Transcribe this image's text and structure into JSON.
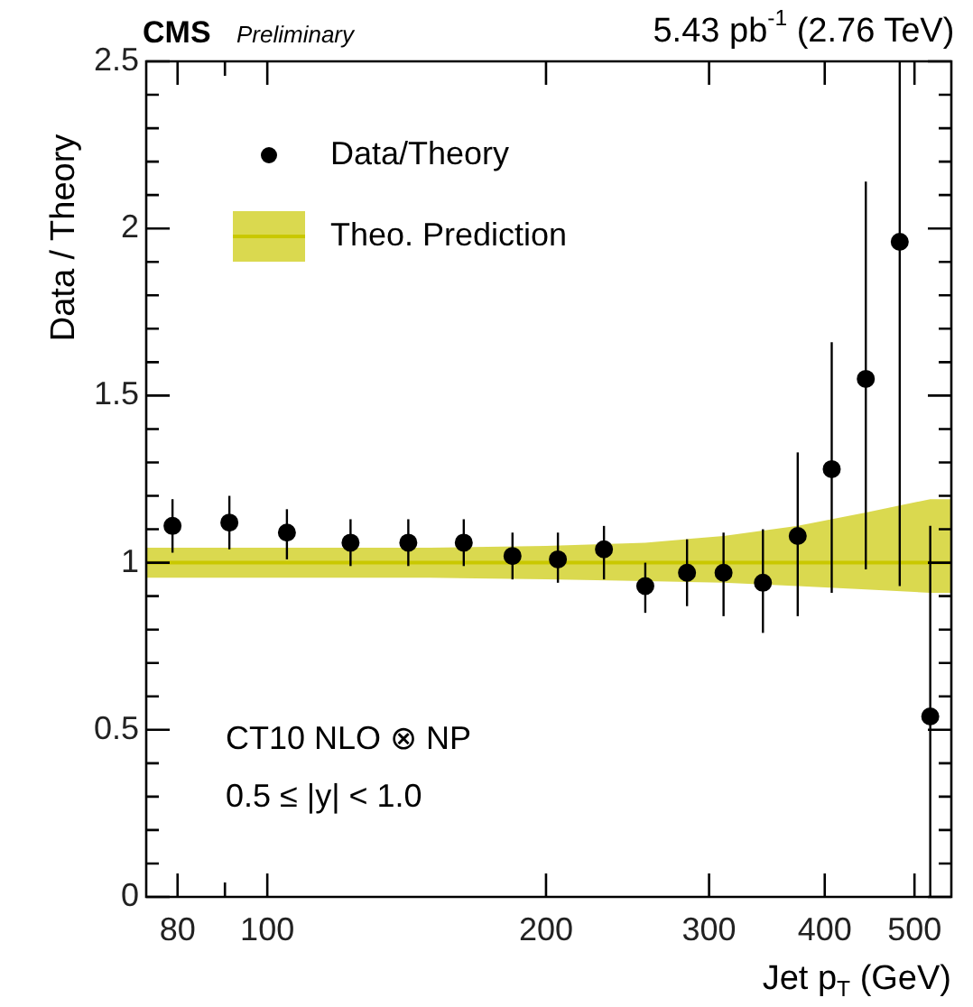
{
  "chart_data": {
    "type": "scatter",
    "xlabel": "Jet p$_{T}$ (GeV)",
    "ylabel": "Data / Theory",
    "annotations": [
      "CMS",
      "Preliminary",
      "5.43 pb$^{-1}$ (2.76 TeV)",
      "CT10 NLO ⊗ NP",
      "0.5 ≤ |y| < 1.0"
    ],
    "log": "x",
    "grid": false,
    "legend": "top left",
    "xlim": [
      74,
      548
    ],
    "xticks": [
      80,
      {
        "value": 90,
        "label": null
      },
      100,
      200,
      300,
      400,
      500
    ],
    "ylim": [
      0,
      2.5
    ],
    "yticks": [
      0,
      {
        "value": 0.1,
        "label": null
      },
      {
        "value": 0.2,
        "label": null
      },
      {
        "value": 0.3,
        "label": null
      },
      {
        "value": 0.4,
        "label": null
      },
      0.5,
      {
        "value": 0.6,
        "label": null
      },
      {
        "value": 0.7,
        "label": null
      },
      {
        "value": 0.8,
        "label": null
      },
      {
        "value": 0.9,
        "label": null
      },
      1,
      {
        "value": 1.1,
        "label": null
      },
      {
        "value": 1.2,
        "label": null
      },
      {
        "value": 1.3,
        "label": null
      },
      {
        "value": 1.4,
        "label": null
      },
      1.5,
      {
        "value": 1.6,
        "label": null
      },
      {
        "value": 1.7,
        "label": null
      },
      {
        "value": 1.8,
        "label": null
      },
      {
        "value": 1.9,
        "label": null
      },
      2,
      {
        "value": 2.1,
        "label": null
      },
      {
        "value": 2.2,
        "label": null
      },
      {
        "value": 2.3,
        "label": null
      },
      {
        "value": 2.4,
        "label": null
      },
      2.5
    ],
    "series": [
      {
        "name": "Theo. Prediction",
        "type": "line",
        "color": "#c9c800",
        "x": [
          74,
          150,
          200,
          256,
          311,
          374,
          443,
          520,
          548
        ],
        "values": [
          1,
          1,
          1,
          1,
          1,
          1,
          1,
          1,
          1
        ],
        "lower": [
          0.955,
          0.955,
          0.95,
          0.945,
          0.94,
          0.93,
          0.92,
          0.91,
          0.91
        ],
        "upper": [
          1.045,
          1.045,
          1.05,
          1.06,
          1.08,
          1.11,
          1.15,
          1.19,
          1.19
        ]
      },
      {
        "name": "Data/Theory",
        "marker": "circle",
        "color": "#000000",
        "x": [
          79,
          91,
          105,
          123,
          142,
          163,
          184,
          206,
          231,
          256,
          284,
          311,
          343,
          374,
          407,
          443,
          482,
          520
        ],
        "values": [
          1.11,
          1.12,
          1.09,
          1.06,
          1.06,
          1.06,
          1.02,
          1.01,
          1.04,
          0.93,
          0.97,
          0.97,
          0.94,
          1.08,
          1.28,
          1.55,
          1.96,
          0.54
        ],
        "errors": [
          [
            1.03,
            1.19
          ],
          [
            1.04,
            1.2
          ],
          [
            1.01,
            1.16
          ],
          [
            0.99,
            1.13
          ],
          [
            0.99,
            1.13
          ],
          [
            0.99,
            1.13
          ],
          [
            0.95,
            1.09
          ],
          [
            0.94,
            1.09
          ],
          [
            0.95,
            1.11
          ],
          [
            0.85,
            1.0
          ],
          [
            0.87,
            1.07
          ],
          [
            0.84,
            1.09
          ],
          [
            0.79,
            1.1
          ],
          [
            0.84,
            1.33
          ],
          [
            0.91,
            1.66
          ],
          [
            0.98,
            2.14
          ],
          [
            0.93,
            2.5
          ],
          [
            0,
            1.11
          ]
        ]
      }
    ]
  }
}
